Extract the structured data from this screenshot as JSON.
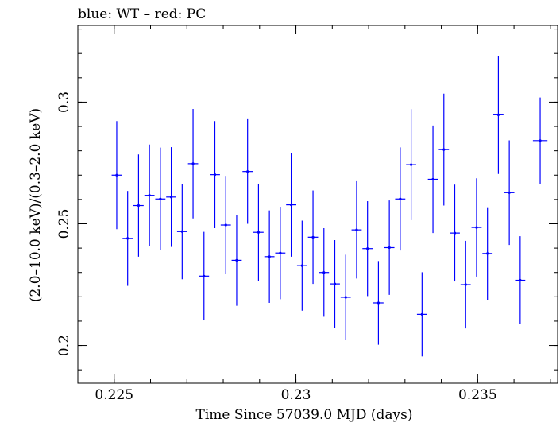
{
  "chart_data": {
    "type": "scatter",
    "title": "blue: WT – red: PC",
    "xlabel": "Time Since 57039.0 MJD (days)",
    "ylabel": "(2.0–10.0 keV)/(0.3–2.0 keV)",
    "xlim": [
      0.224,
      0.2372
    ],
    "ylim": [
      0.1845,
      0.3315
    ],
    "x_ticks": [
      {
        "value": 0.225,
        "label": "0.225"
      },
      {
        "value": 0.23,
        "label": "0.23"
      },
      {
        "value": 0.235,
        "label": "0.235"
      }
    ],
    "y_ticks": [
      {
        "value": 0.2,
        "label": "0.2"
      },
      {
        "value": 0.25,
        "label": "0.25"
      },
      {
        "value": 0.3,
        "label": "0.3"
      }
    ],
    "x_minor_step": 0.001,
    "y_minor_step": 0.01,
    "grid": false,
    "series": [
      {
        "color": "#0000ff",
        "points": [
          {
            "x": 0.22507,
            "xerr": 0.00014,
            "y": 0.27,
            "ylo": 0.2478,
            "yhi": 0.2922
          },
          {
            "x": 0.22537,
            "xerr": 0.00014,
            "y": 0.244,
            "ylo": 0.2245,
            "yhi": 0.2635
          },
          {
            "x": 0.22567,
            "xerr": 0.00014,
            "y": 0.2575,
            "ylo": 0.2365,
            "yhi": 0.2785
          },
          {
            "x": 0.22597,
            "xerr": 0.00014,
            "y": 0.2617,
            "ylo": 0.2408,
            "yhi": 0.2826
          },
          {
            "x": 0.22627,
            "xerr": 0.00014,
            "y": 0.2602,
            "ylo": 0.2392,
            "yhi": 0.2813
          },
          {
            "x": 0.22657,
            "xerr": 0.00014,
            "y": 0.261,
            "ylo": 0.2405,
            "yhi": 0.2815
          },
          {
            "x": 0.22687,
            "xerr": 0.00014,
            "y": 0.2468,
            "ylo": 0.2272,
            "yhi": 0.2664
          },
          {
            "x": 0.22717,
            "xerr": 0.00014,
            "y": 0.2747,
            "ylo": 0.2522,
            "yhi": 0.2972
          },
          {
            "x": 0.22747,
            "xerr": 0.00014,
            "y": 0.2285,
            "ylo": 0.2103,
            "yhi": 0.2467
          },
          {
            "x": 0.22777,
            "xerr": 0.00014,
            "y": 0.2702,
            "ylo": 0.2482,
            "yhi": 0.2922
          },
          {
            "x": 0.22807,
            "xerr": 0.00014,
            "y": 0.2495,
            "ylo": 0.2293,
            "yhi": 0.2697
          },
          {
            "x": 0.22837,
            "xerr": 0.00014,
            "y": 0.235,
            "ylo": 0.2163,
            "yhi": 0.2537
          },
          {
            "x": 0.22867,
            "xerr": 0.00014,
            "y": 0.2715,
            "ylo": 0.25,
            "yhi": 0.293
          },
          {
            "x": 0.22897,
            "xerr": 0.00014,
            "y": 0.2465,
            "ylo": 0.2265,
            "yhi": 0.2665
          },
          {
            "x": 0.22927,
            "xerr": 0.00014,
            "y": 0.2365,
            "ylo": 0.2175,
            "yhi": 0.2555
          },
          {
            "x": 0.22957,
            "xerr": 0.00014,
            "y": 0.238,
            "ylo": 0.219,
            "yhi": 0.257
          },
          {
            "x": 0.22987,
            "xerr": 0.00014,
            "y": 0.2578,
            "ylo": 0.2365,
            "yhi": 0.2791
          },
          {
            "x": 0.23017,
            "xerr": 0.00014,
            "y": 0.2328,
            "ylo": 0.2143,
            "yhi": 0.2513
          },
          {
            "x": 0.23047,
            "xerr": 0.00014,
            "y": 0.2445,
            "ylo": 0.2253,
            "yhi": 0.2637
          },
          {
            "x": 0.23077,
            "xerr": 0.00014,
            "y": 0.23,
            "ylo": 0.2118,
            "yhi": 0.2482
          },
          {
            "x": 0.23107,
            "xerr": 0.00014,
            "y": 0.2253,
            "ylo": 0.2073,
            "yhi": 0.2433
          },
          {
            "x": 0.23137,
            "xerr": 0.00014,
            "y": 0.2198,
            "ylo": 0.2023,
            "yhi": 0.2373
          },
          {
            "x": 0.23167,
            "xerr": 0.00014,
            "y": 0.2475,
            "ylo": 0.2275,
            "yhi": 0.2675
          },
          {
            "x": 0.23197,
            "xerr": 0.00014,
            "y": 0.2398,
            "ylo": 0.2203,
            "yhi": 0.2593
          },
          {
            "x": 0.23227,
            "xerr": 0.00014,
            "y": 0.2175,
            "ylo": 0.2003,
            "yhi": 0.2347
          },
          {
            "x": 0.23257,
            "xerr": 0.00014,
            "y": 0.2402,
            "ylo": 0.2208,
            "yhi": 0.2596
          },
          {
            "x": 0.23287,
            "xerr": 0.00014,
            "y": 0.2602,
            "ylo": 0.239,
            "yhi": 0.2814
          },
          {
            "x": 0.23317,
            "xerr": 0.00014,
            "y": 0.2743,
            "ylo": 0.2515,
            "yhi": 0.2971
          },
          {
            "x": 0.23347,
            "xerr": 0.00014,
            "y": 0.2128,
            "ylo": 0.1955,
            "yhi": 0.2301
          },
          {
            "x": 0.23377,
            "xerr": 0.00014,
            "y": 0.2683,
            "ylo": 0.2462,
            "yhi": 0.2904
          },
          {
            "x": 0.23407,
            "xerr": 0.00014,
            "y": 0.2805,
            "ylo": 0.2575,
            "yhi": 0.3035
          },
          {
            "x": 0.23437,
            "xerr": 0.00014,
            "y": 0.2462,
            "ylo": 0.2263,
            "yhi": 0.2661
          },
          {
            "x": 0.23467,
            "xerr": 0.00014,
            "y": 0.225,
            "ylo": 0.207,
            "yhi": 0.243
          },
          {
            "x": 0.23497,
            "xerr": 0.00014,
            "y": 0.2485,
            "ylo": 0.2283,
            "yhi": 0.2687
          },
          {
            "x": 0.23527,
            "xerr": 0.00014,
            "y": 0.2378,
            "ylo": 0.2188,
            "yhi": 0.2568
          },
          {
            "x": 0.23557,
            "xerr": 0.00014,
            "y": 0.2948,
            "ylo": 0.2705,
            "yhi": 0.3191
          },
          {
            "x": 0.23587,
            "xerr": 0.00014,
            "y": 0.2628,
            "ylo": 0.2413,
            "yhi": 0.2843
          },
          {
            "x": 0.23617,
            "xerr": 0.00014,
            "y": 0.2268,
            "ylo": 0.2087,
            "yhi": 0.2449
          },
          {
            "x": 0.23672,
            "xerr": 0.0002,
            "y": 0.2842,
            "ylo": 0.2665,
            "yhi": 0.3019
          }
        ]
      }
    ]
  }
}
